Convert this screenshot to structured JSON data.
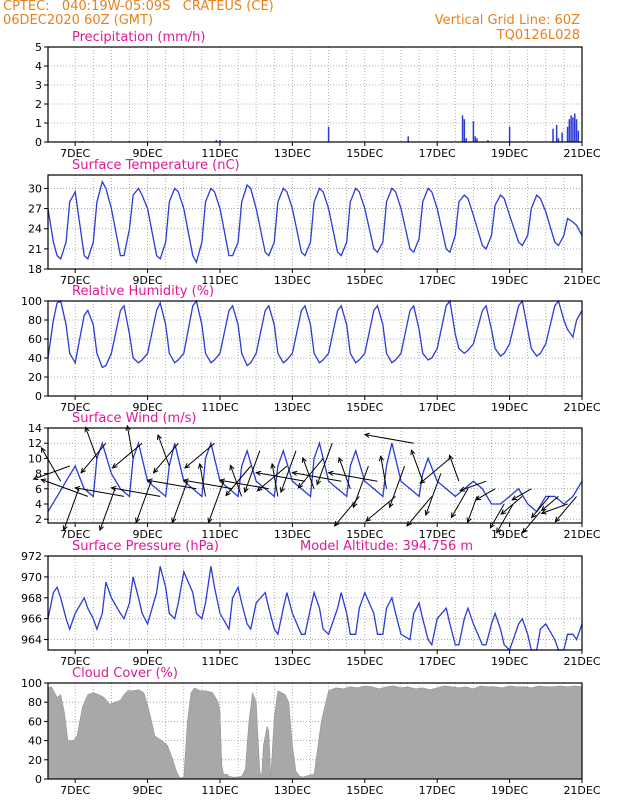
{
  "header": {
    "left_line1": "CPTEC:   040:19W-05:09S   CRATEUS (CE)",
    "left_line2": "06DEC2020 60Z (GMT)",
    "right_line1": "Vertical Grid Line: 60Z",
    "right_line2": "TQ0126L028"
  },
  "colors": {
    "header": "#e8801e",
    "title": "#e0189a",
    "series": "#2b3bd8",
    "cloud": "#a8a8a8",
    "axis": "#000000"
  },
  "x_tick_labels": [
    "7DEC",
    "9DEC",
    "11DEC",
    "13DEC",
    "15DEC",
    "17DEC",
    "19DEC",
    "21DEC"
  ],
  "chart_data": [
    {
      "id": "precip",
      "type": "bar",
      "title": "Precipitation (mm/h)",
      "x_unit": "day of December 2020",
      "x_range": [
        6.25,
        21
      ],
      "ylim": [
        0,
        5
      ],
      "yticks": [
        0,
        1,
        2,
        3,
        4,
        5
      ],
      "grid": "dotted",
      "bar_width": 0.04,
      "x": [
        7.2,
        8.5,
        10.9,
        11.0,
        14.0,
        16.2,
        17.7,
        17.75,
        17.8,
        18.0,
        18.05,
        18.1,
        18.4,
        19.0,
        20.2,
        20.3,
        20.35,
        20.45,
        20.6,
        20.65,
        20.7,
        20.75,
        20.8,
        20.85,
        20.9
      ],
      "values": [
        0.05,
        0.05,
        0.1,
        0.1,
        0.8,
        0.3,
        1.4,
        1.2,
        0.2,
        1.1,
        0.3,
        0.2,
        0.1,
        0.8,
        0.7,
        0.9,
        0.2,
        0.5,
        0.8,
        1.2,
        1.4,
        1.3,
        1.5,
        1.2,
        0.6
      ]
    },
    {
      "id": "temperature",
      "type": "line",
      "title": "Surface Temperature (nC)",
      "x_range": [
        6.25,
        21
      ],
      "ylim": [
        18,
        32
      ],
      "yticks": [
        18,
        21,
        24,
        27,
        30
      ],
      "grid": "dotted",
      "x": [
        6.25,
        6.4,
        6.5,
        6.6,
        6.75,
        6.85,
        7.0,
        7.25,
        7.35,
        7.5,
        7.6,
        7.75,
        7.85,
        8.0,
        8.25,
        8.35,
        8.5,
        8.6,
        8.75,
        8.85,
        9.0,
        9.25,
        9.35,
        9.5,
        9.6,
        9.75,
        9.85,
        10.0,
        10.25,
        10.35,
        10.5,
        10.6,
        10.75,
        10.85,
        11.0,
        11.25,
        11.35,
        11.5,
        11.6,
        11.75,
        11.85,
        12.0,
        12.25,
        12.35,
        12.5,
        12.6,
        12.75,
        12.85,
        13.0,
        13.25,
        13.35,
        13.5,
        13.6,
        13.75,
        13.85,
        14.0,
        14.25,
        14.35,
        14.5,
        14.6,
        14.75,
        14.85,
        15.0,
        15.25,
        15.35,
        15.5,
        15.6,
        15.75,
        15.85,
        16.0,
        16.25,
        16.35,
        16.5,
        16.6,
        16.75,
        16.85,
        17.0,
        17.25,
        17.35,
        17.5,
        17.6,
        17.75,
        17.85,
        18.0,
        18.25,
        18.35,
        18.5,
        18.6,
        18.75,
        18.85,
        19.0,
        19.25,
        19.35,
        19.5,
        19.6,
        19.75,
        19.85,
        20.0,
        20.25,
        20.35,
        20.5,
        20.6,
        20.75,
        20.85,
        21.0
      ],
      "values": [
        27,
        22,
        20,
        19.5,
        22,
        28,
        29.5,
        20,
        19.5,
        22,
        28,
        31,
        30,
        27,
        20,
        20,
        24,
        29,
        30,
        29,
        27,
        20,
        19.5,
        22,
        28,
        30,
        29.5,
        27,
        20,
        19,
        22,
        28,
        30,
        29.5,
        27,
        20,
        20,
        22,
        28,
        30.5,
        30,
        27,
        20.5,
        20,
        22,
        28,
        30,
        29.5,
        27,
        20.5,
        20,
        22,
        28,
        30,
        29.5,
        27,
        20.5,
        20,
        22,
        28,
        30,
        29.5,
        27,
        21,
        20.5,
        22,
        28,
        30,
        29.5,
        27,
        21,
        20.5,
        22.5,
        28,
        30,
        29.5,
        27,
        21,
        20.5,
        23,
        28,
        29,
        28.5,
        26,
        21.5,
        21,
        23,
        27.5,
        29,
        28.5,
        26,
        22,
        21.5,
        23,
        27,
        29,
        28.5,
        26.5,
        22,
        21.5,
        23,
        25.5,
        25,
        24.5,
        23
      ]
    },
    {
      "id": "humidity",
      "type": "line",
      "title": "Relative Humidity (%)",
      "x_range": [
        6.25,
        21
      ],
      "ylim": [
        0,
        100
      ],
      "yticks": [
        0,
        20,
        40,
        60,
        80,
        100
      ],
      "grid": "dotted",
      "x": [
        6.25,
        6.4,
        6.5,
        6.6,
        6.75,
        6.85,
        7.0,
        7.25,
        7.35,
        7.5,
        7.6,
        7.75,
        7.85,
        8.0,
        8.25,
        8.35,
        8.5,
        8.6,
        8.75,
        8.85,
        9.0,
        9.25,
        9.35,
        9.5,
        9.6,
        9.75,
        9.85,
        10.0,
        10.25,
        10.35,
        10.5,
        10.6,
        10.75,
        10.85,
        11.0,
        11.25,
        11.35,
        11.5,
        11.6,
        11.75,
        11.85,
        12.0,
        12.25,
        12.35,
        12.5,
        12.6,
        12.75,
        12.85,
        13.0,
        13.25,
        13.35,
        13.5,
        13.6,
        13.75,
        13.85,
        14.0,
        14.25,
        14.35,
        14.5,
        14.6,
        14.75,
        14.85,
        15.0,
        15.25,
        15.35,
        15.5,
        15.6,
        15.75,
        15.85,
        16.0,
        16.25,
        16.35,
        16.5,
        16.6,
        16.75,
        16.85,
        17.0,
        17.25,
        17.35,
        17.5,
        17.6,
        17.75,
        17.85,
        18.0,
        18.25,
        18.35,
        18.5,
        18.6,
        18.75,
        18.85,
        19.0,
        19.25,
        19.35,
        19.5,
        19.6,
        19.75,
        19.85,
        20.0,
        20.25,
        20.35,
        20.5,
        20.6,
        20.75,
        20.85,
        21.0
      ],
      "values": [
        40,
        80,
        98,
        100,
        75,
        45,
        35,
        85,
        90,
        75,
        45,
        30,
        32,
        45,
        90,
        95,
        65,
        40,
        35,
        38,
        45,
        90,
        98,
        75,
        45,
        35,
        38,
        45,
        95,
        100,
        75,
        45,
        35,
        38,
        45,
        90,
        95,
        75,
        45,
        32,
        35,
        45,
        90,
        95,
        75,
        45,
        35,
        38,
        45,
        90,
        95,
        75,
        45,
        35,
        38,
        45,
        90,
        95,
        75,
        45,
        35,
        38,
        45,
        90,
        95,
        75,
        45,
        35,
        38,
        45,
        90,
        95,
        70,
        45,
        38,
        40,
        50,
        95,
        100,
        65,
        50,
        45,
        48,
        55,
        90,
        95,
        70,
        50,
        42,
        45,
        55,
        95,
        100,
        70,
        50,
        42,
        45,
        55,
        95,
        100,
        80,
        70,
        62,
        80,
        90
      ]
    },
    {
      "id": "wind",
      "type": "line",
      "title": "Surface Wind (m/s)",
      "x_range": [
        6.25,
        21
      ],
      "ylim": [
        1.5,
        14
      ],
      "yticks": [
        2,
        4,
        6,
        8,
        10,
        12,
        14
      ],
      "grid": "dotted",
      "x": [
        6.25,
        6.5,
        6.75,
        7.0,
        7.25,
        7.5,
        7.6,
        7.75,
        8.0,
        8.25,
        8.5,
        8.6,
        8.75,
        9.0,
        9.25,
        9.5,
        9.6,
        9.75,
        10.0,
        10.25,
        10.5,
        10.6,
        10.75,
        11.0,
        11.25,
        11.5,
        11.6,
        11.75,
        12.0,
        12.25,
        12.5,
        12.6,
        12.75,
        13.0,
        13.25,
        13.5,
        13.6,
        13.75,
        14.0,
        14.25,
        14.5,
        14.6,
        14.75,
        15.0,
        15.25,
        15.5,
        15.6,
        15.75,
        16.0,
        16.25,
        16.5,
        16.6,
        16.75,
        17.0,
        17.25,
        17.5,
        17.75,
        18.0,
        18.25,
        18.5,
        18.75,
        19.0,
        19.25,
        19.5,
        19.75,
        20.0,
        20.25,
        20.5,
        20.75,
        21.0
      ],
      "values": [
        3,
        5,
        7,
        9,
        6,
        5,
        10,
        12,
        8,
        6,
        5,
        10,
        12,
        7,
        6,
        5,
        9,
        12,
        7,
        6,
        5,
        10,
        12,
        7,
        6,
        5,
        9,
        11,
        7,
        6,
        5,
        9,
        11,
        7,
        6,
        5,
        10,
        12,
        7,
        6,
        5,
        9,
        11,
        7,
        6,
        5,
        9,
        12,
        7,
        6,
        5,
        8,
        10,
        7,
        6,
        5,
        6,
        7,
        6,
        4,
        4,
        5,
        6,
        4,
        3,
        5,
        5,
        4,
        5,
        7
      ]
    },
    {
      "id": "pressure",
      "type": "line",
      "title": "Surface Pressure (hPa)",
      "annotation": "Model Altitude: 394.756  m",
      "x_range": [
        6.25,
        21
      ],
      "ylim": [
        963,
        972
      ],
      "yticks": [
        964,
        966,
        968,
        970,
        972
      ],
      "grid": "dotted",
      "x": [
        6.25,
        6.4,
        6.5,
        6.6,
        6.75,
        6.85,
        7.0,
        7.25,
        7.35,
        7.5,
        7.6,
        7.75,
        7.85,
        8.0,
        8.25,
        8.35,
        8.5,
        8.6,
        8.75,
        8.85,
        9.0,
        9.25,
        9.35,
        9.5,
        9.6,
        9.75,
        9.85,
        10.0,
        10.25,
        10.35,
        10.5,
        10.6,
        10.75,
        10.85,
        11.0,
        11.25,
        11.35,
        11.5,
        11.6,
        11.75,
        11.85,
        12.0,
        12.25,
        12.35,
        12.5,
        12.6,
        12.75,
        12.85,
        13.0,
        13.25,
        13.35,
        13.5,
        13.6,
        13.75,
        13.85,
        14.0,
        14.25,
        14.35,
        14.5,
        14.6,
        14.75,
        14.85,
        15.0,
        15.25,
        15.35,
        15.5,
        15.6,
        15.75,
        15.85,
        16.0,
        16.25,
        16.35,
        16.5,
        16.6,
        16.75,
        16.85,
        17.0,
        17.25,
        17.35,
        17.5,
        17.6,
        17.75,
        17.85,
        18.0,
        18.25,
        18.35,
        18.5,
        18.6,
        18.75,
        18.85,
        19.0,
        19.25,
        19.35,
        19.5,
        19.6,
        19.75,
        19.85,
        20.0,
        20.25,
        20.35,
        20.5,
        20.6,
        20.75,
        20.85,
        21.0
      ],
      "values": [
        966,
        968.5,
        969,
        968,
        966,
        965,
        966.5,
        968,
        967,
        966,
        965,
        966.5,
        969.5,
        968,
        966.5,
        966,
        967.5,
        970,
        968,
        966.5,
        965.5,
        968.5,
        971,
        969,
        966.5,
        966,
        967.5,
        970.5,
        968.5,
        966.5,
        966,
        967.5,
        971,
        969,
        966.5,
        965,
        968,
        969,
        967.5,
        965.5,
        965,
        967.5,
        968.5,
        967,
        965,
        964.5,
        967,
        968.5,
        966.5,
        964.5,
        964.5,
        967,
        968.5,
        967,
        965,
        964.5,
        967,
        968.5,
        966.5,
        964.5,
        964.5,
        967,
        968.5,
        966.5,
        964.5,
        964.5,
        967,
        968,
        966.5,
        964.5,
        964,
        966.5,
        967.5,
        966,
        964,
        963.5,
        966,
        967,
        965.5,
        963.5,
        963.5,
        966,
        967,
        965.5,
        963.5,
        963.5,
        965.5,
        966.5,
        965,
        963.5,
        963,
        965.5,
        966,
        964.5,
        963,
        963,
        965,
        965.5,
        964,
        963,
        963,
        964.5,
        964.5,
        964,
        965.5
      ]
    },
    {
      "id": "cloud",
      "type": "area",
      "title": "Cloud Cover (%)",
      "x_range": [
        6.25,
        21
      ],
      "ylim": [
        0,
        100
      ],
      "yticks": [
        0,
        20,
        40,
        60,
        80,
        100
      ],
      "grid": "dotted",
      "x": [
        6.25,
        6.35,
        6.5,
        6.6,
        6.7,
        6.8,
        6.95,
        7.05,
        7.2,
        7.35,
        7.5,
        7.65,
        7.8,
        7.95,
        8.1,
        8.25,
        8.35,
        8.45,
        8.6,
        8.75,
        8.9,
        9.05,
        9.2,
        9.4,
        9.55,
        9.7,
        9.8,
        9.9,
        10.0,
        10.1,
        10.2,
        10.3,
        10.45,
        10.6,
        10.8,
        10.95,
        11.0,
        11.05,
        11.1,
        11.2,
        11.25,
        11.35,
        11.5,
        11.6,
        11.7,
        11.8,
        11.9,
        12.0,
        12.1,
        12.15,
        12.2,
        12.3,
        12.35,
        12.4,
        12.5,
        12.6,
        12.8,
        12.9,
        13.0,
        13.1,
        13.2,
        13.3,
        13.45,
        13.6,
        13.8,
        14.0,
        14.2,
        14.4,
        14.6,
        14.8,
        15.0,
        15.2,
        15.4,
        15.6,
        15.8,
        16.0,
        16.2,
        16.4,
        16.6,
        16.8,
        17.0,
        17.2,
        17.4,
        17.6,
        17.8,
        18.0,
        18.2,
        18.4,
        18.6,
        18.8,
        19.0,
        19.2,
        19.4,
        19.6,
        19.8,
        20.0,
        20.2,
        20.4,
        20.6,
        20.8,
        21.0
      ],
      "values": [
        95,
        96,
        85,
        88,
        70,
        40,
        40,
        45,
        75,
        88,
        90,
        88,
        85,
        78,
        80,
        82,
        88,
        92,
        92,
        93,
        90,
        70,
        45,
        40,
        35,
        20,
        8,
        1,
        2,
        60,
        90,
        95,
        92,
        92,
        90,
        80,
        70,
        15,
        5,
        5,
        3,
        2,
        2,
        3,
        10,
        60,
        90,
        80,
        8,
        3,
        35,
        55,
        50,
        2,
        65,
        92,
        88,
        80,
        35,
        8,
        3,
        2,
        4,
        5,
        60,
        92,
        95,
        94,
        96,
        95,
        97,
        96,
        94,
        96,
        97,
        95,
        96,
        94,
        95,
        93,
        95,
        97,
        96,
        95,
        96,
        94,
        97,
        96,
        96,
        95,
        97,
        96,
        96,
        95,
        97,
        96,
        96,
        97,
        96,
        97,
        96
      ]
    }
  ],
  "wind_vectors": {
    "units": "m/s",
    "x": [
      6.6,
      6.85,
      7.1,
      7.35,
      7.6,
      7.85,
      8.1,
      8.35,
      8.6,
      8.85,
      9.1,
      9.35,
      9.6,
      9.85,
      10.1,
      10.35,
      10.6,
      10.85,
      11.1,
      11.35,
      11.6,
      11.85,
      12.1,
      12.35,
      12.6,
      12.85,
      13.1,
      13.35,
      13.6,
      13.85,
      14.1,
      14.35,
      14.6,
      14.85,
      15.1,
      15.35,
      15.6,
      15.85,
      16.1,
      16.35,
      16.6,
      16.85,
      17.1,
      17.35,
      17.6,
      17.85,
      18.1,
      18.35,
      18.6,
      18.85,
      19.1,
      19.35,
      19.6,
      19.85,
      20.1,
      20.35,
      20.6,
      20.85
    ],
    "magnitude": [
      7,
      7,
      8,
      9,
      6,
      7,
      8,
      9,
      6,
      7,
      8,
      9,
      6,
      7,
      8,
      9,
      6,
      7,
      8,
      9,
      6,
      7,
      8,
      9,
      6,
      7,
      8,
      9,
      6,
      7,
      8,
      9,
      6,
      7,
      8,
      9,
      6,
      7,
      8,
      9,
      6,
      7,
      8,
      7,
      5,
      6,
      5,
      5,
      4,
      5,
      6,
      5,
      4,
      5,
      5,
      4,
      5,
      6
    ],
    "direction_deg": [
      120,
      200,
      250,
      160,
      110,
      230,
      250,
      170,
      100,
      220,
      250,
      170,
      110,
      230,
      250,
      170,
      100,
      220,
      250,
      170,
      110,
      230,
      250,
      170,
      100,
      220,
      250,
      170,
      110,
      230,
      250,
      170,
      110,
      230,
      250,
      170,
      100,
      220,
      250,
      170,
      110,
      230,
      250,
      220,
      110,
      240,
      250,
      200,
      210,
      240,
      240,
      220,
      210,
      230,
      230,
      220,
      200,
      230
    ]
  }
}
